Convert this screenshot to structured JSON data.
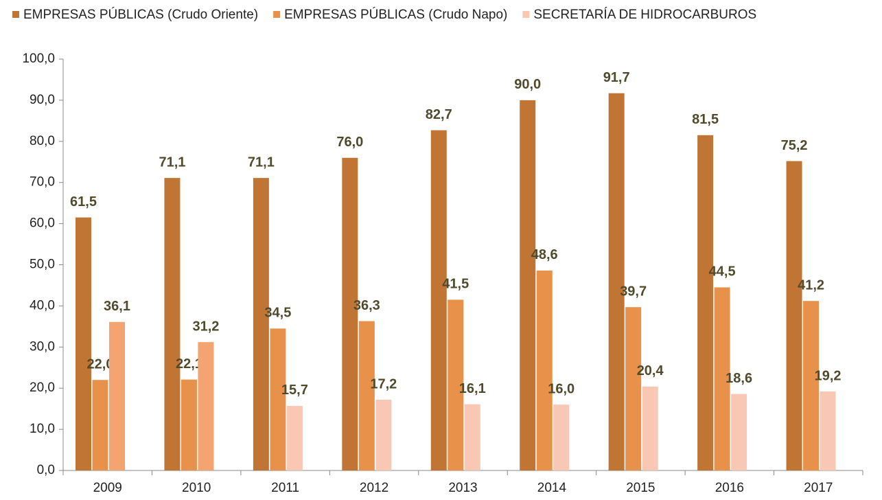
{
  "chart_data": {
    "type": "bar",
    "categories": [
      "2009",
      "2010",
      "2011",
      "2012",
      "2013",
      "2014",
      "2015",
      "2016",
      "2017"
    ],
    "series": [
      {
        "name": "EMPRESAS PÚBLICAS (Crudo Oriente)",
        "color": "#c07535",
        "values": [
          61.5,
          71.1,
          71.1,
          76.0,
          82.7,
          90.0,
          91.7,
          81.5,
          75.2
        ],
        "value_labels": [
          "61,5",
          "71,1",
          "71,1",
          "76,0",
          "82,7",
          "90,0",
          "91,7",
          "81,5",
          "75,2"
        ]
      },
      {
        "name": "EMPRESAS PÚBLICAS (Crudo Napo)",
        "color": "#e8914a",
        "values": [
          22.0,
          22.1,
          34.5,
          36.3,
          41.5,
          48.6,
          39.7,
          44.5,
          41.2
        ],
        "value_labels": [
          "22,0",
          "22,1",
          "34,5",
          "36,3",
          "41,5",
          "48,6",
          "39,7",
          "44,5",
          "41,2"
        ]
      },
      {
        "name": "SECRETARÍA DE HIDROCARBUROS",
        "color": "#f8c8b4",
        "colors": [
          "#f4a470",
          "#f4a470",
          "#f8c8b4",
          "#f8c8b4",
          "#f8c8b4",
          "#f8c8b4",
          "#f8c8b4",
          "#f8c8b4",
          "#f8c8b4"
        ],
        "values": [
          36.1,
          31.2,
          15.7,
          17.2,
          16.1,
          16.0,
          20.4,
          18.6,
          19.2
        ],
        "value_labels": [
          "36,1",
          "31,2",
          "15,7",
          "17,2",
          "16,1",
          "16,0",
          "20,4",
          "18,6",
          "19,2"
        ]
      }
    ],
    "ylim": [
      0,
      100
    ],
    "yticks": [
      {
        "value": 0,
        "label": "0,0"
      },
      {
        "value": 10,
        "label": "10,0"
      },
      {
        "value": 20,
        "label": "20,0"
      },
      {
        "value": 30,
        "label": "30,0"
      },
      {
        "value": 40,
        "label": "40,0"
      },
      {
        "value": 50,
        "label": "50,0"
      },
      {
        "value": 60,
        "label": "60,0"
      },
      {
        "value": 70,
        "label": "70,0"
      },
      {
        "value": 80,
        "label": "80,0"
      },
      {
        "value": 90,
        "label": "90,0"
      },
      {
        "value": 100,
        "label": "100,0"
      }
    ],
    "legend": "top"
  }
}
